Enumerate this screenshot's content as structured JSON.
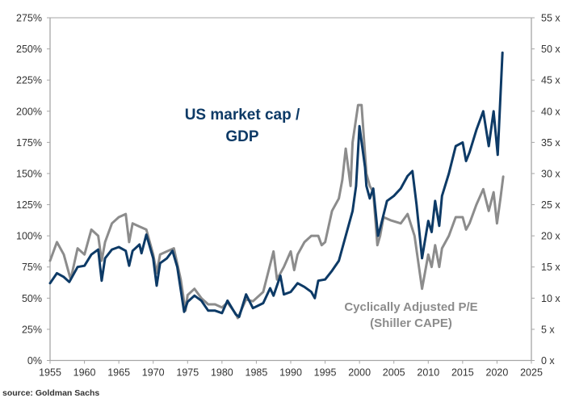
{
  "chart_data": {
    "type": "line",
    "source": "source: Goldman Sachs",
    "x_ticks": [
      "1955",
      "1960",
      "1965",
      "1970",
      "1975",
      "1980",
      "1985",
      "1990",
      "1995",
      "2000",
      "2005",
      "2010",
      "2015",
      "2020",
      "2025"
    ],
    "xlim": [
      1955,
      2025
    ],
    "y_left": {
      "lim": [
        0,
        275
      ],
      "ticks": [
        "0%",
        "25%",
        "50%",
        "75%",
        "100%",
        "125%",
        "150%",
        "175%",
        "200%",
        "225%",
        "250%",
        "275%"
      ]
    },
    "y_right": {
      "lim": [
        0,
        55
      ],
      "ticks": [
        "0 x",
        "5 x",
        "10 x",
        "15 x",
        "20 x",
        "25 x",
        "30 x",
        "35 x",
        "40 x",
        "45 x",
        "50 x",
        "55 x"
      ]
    },
    "grid": false,
    "series": [
      {
        "name": "US market cap / GDP",
        "annotation_lines": [
          "US market cap /",
          "GDP"
        ],
        "axis": "left",
        "color": "#0d3a66",
        "x": [
          1955,
          1956,
          1957,
          1957.8,
          1959,
          1960,
          1961,
          1962,
          1962.5,
          1963,
          1964,
          1965,
          1966,
          1966.5,
          1967,
          1968,
          1968.3,
          1969,
          1970,
          1970.5,
          1971,
          1972,
          1972.8,
          1973.5,
          1974.5,
          1975,
          1976,
          1977,
          1978,
          1979,
          1980,
          1980.8,
          1982,
          1982.5,
          1983.5,
          1984.5,
          1986,
          1987,
          1987.5,
          1988.5,
          1989,
          1990,
          1991,
          1992,
          1993,
          1993.5,
          1994,
          1995,
          1996,
          1997,
          1998,
          1999,
          1999.5,
          2000,
          2000.8,
          2001,
          2001.5,
          2002,
          2002.7,
          2003,
          2004,
          2005,
          2006,
          2007,
          2007.7,
          2008.3,
          2009.1,
          2010,
          2010.5,
          2011,
          2011.6,
          2012,
          2013,
          2014,
          2015,
          2015.5,
          2016,
          2017,
          2018,
          2018.8,
          2019.5,
          2020.1,
          2020.8
        ],
        "values": [
          62,
          70,
          67,
          63,
          75,
          76,
          85,
          89,
          64,
          82,
          89,
          91,
          88,
          76,
          88,
          93,
          86,
          101,
          82,
          60,
          78,
          82,
          88,
          75,
          39,
          47,
          52,
          48,
          40,
          40,
          38,
          48,
          37,
          35,
          53,
          42,
          46,
          58,
          52,
          68,
          53,
          55,
          62,
          59,
          55,
          50,
          64,
          65,
          72,
          80,
          100,
          120,
          140,
          188,
          155,
          140,
          130,
          138,
          100,
          106,
          128,
          132,
          138,
          148,
          152,
          125,
          82,
          112,
          103,
          128,
          108,
          132,
          150,
          172,
          175,
          160,
          167,
          185,
          200,
          172,
          200,
          165,
          247
        ]
      },
      {
        "name": "Cyclically Adjusted P/E (Shiller CAPE)",
        "annotation_lines": [
          "Cyclically Adjusted P/E",
          "(Shiller CAPE)"
        ],
        "axis": "right",
        "color": "#8c8c8c",
        "x": [
          1955,
          1956,
          1957,
          1958,
          1959,
          1960,
          1961,
          1962,
          1962.5,
          1963,
          1964,
          1965,
          1966,
          1966.5,
          1967,
          1968,
          1969,
          1970,
          1970.5,
          1971,
          1972,
          1973,
          1974,
          1974.7,
          1975,
          1976,
          1977,
          1978,
          1979,
          1980,
          1980.8,
          1982,
          1982.3,
          1983.5,
          1984.5,
          1986,
          1987.5,
          1988,
          1989,
          1990,
          1990.5,
          1991,
          1992,
          1993,
          1994,
          1994.5,
          1995,
          1996,
          1997,
          1997.5,
          1998,
          1998.7,
          1999,
          1999.8,
          2000.3,
          2001,
          2001.5,
          2002,
          2002.6,
          2003,
          2003.5,
          2004.5,
          2006,
          2007,
          2008,
          2009.1,
          2010,
          2010.5,
          2011,
          2011.6,
          2012,
          2013,
          2014,
          2015,
          2015.5,
          2016,
          2017,
          2018,
          2018.8,
          2019.5,
          2020.0,
          2020.5,
          2020.9
        ],
        "values": [
          16,
          19,
          17,
          13,
          18,
          17,
          21,
          20,
          16,
          19,
          22,
          23,
          23.5,
          19,
          22,
          21.5,
          21,
          17,
          14,
          17,
          17.5,
          18,
          13,
          8,
          10.5,
          11.5,
          10,
          9,
          9,
          8.5,
          9.3,
          7.5,
          6.8,
          9.8,
          9.5,
          11,
          17.5,
          13,
          15,
          17.5,
          14.5,
          17,
          19,
          20,
          20,
          18.5,
          19,
          24,
          26,
          29,
          34,
          28,
          35,
          41,
          41,
          30,
          28,
          27,
          18.5,
          20,
          23,
          22.5,
          22,
          23.5,
          20,
          11.5,
          17,
          15,
          18.5,
          15,
          18,
          20,
          23,
          23,
          21,
          22,
          25,
          27.5,
          24,
          27,
          22,
          26,
          29.5
        ]
      }
    ]
  }
}
